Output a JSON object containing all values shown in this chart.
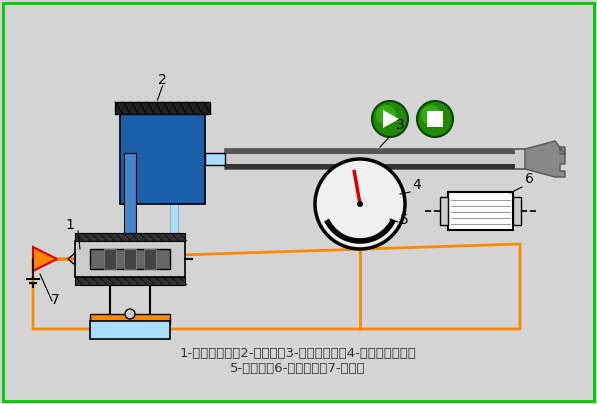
{
  "bg_color": "#d4d4d4",
  "border_color": "#00cc00",
  "title_text": "1-电液伺服阀；2-液压缸；3-机械手手臂；4-齿轮齿条机构；\n5-电位器；6-步进电机；7-放大器",
  "orange_color": "#ff8800",
  "blue_dark": "#1a5fa8",
  "blue_light": "#aaddff",
  "blue_mid": "#4488cc",
  "gray_dark": "#555555",
  "gray_mid": "#888888",
  "gray_light": "#cccccc",
  "black": "#000000",
  "white": "#ffffff",
  "red": "#dd0000",
  "green_button": "#22bb22",
  "label_color": "#333333"
}
